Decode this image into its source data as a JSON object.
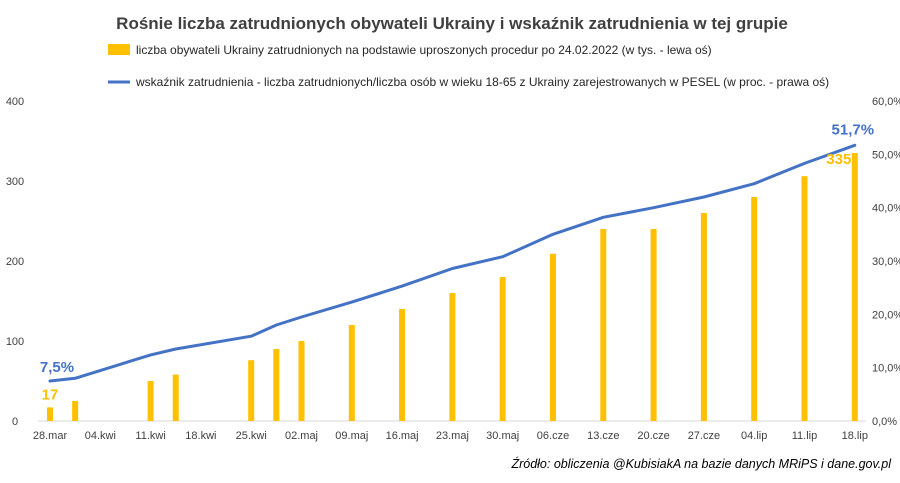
{
  "chart_data": {
    "type": "bar",
    "title": "Rośnie liczba zatrudnionych obywateli Ukrainy i wskaźnik zatrudnienia w tej grupie",
    "categories": [
      "28.mar",
      "04.kwi",
      "11.kwi",
      "18.kwi",
      "25.kwi",
      "02.maj",
      "09.maj",
      "16.maj",
      "23.maj",
      "30.maj",
      "06.cze",
      "13.cze",
      "20.cze",
      "27.cze",
      "04.lip",
      "11.lip",
      "18.lip"
    ],
    "x": [
      "28.mar",
      "31.mar",
      "04.kwi",
      "07.kwi",
      "11.kwi",
      "14.kwi",
      "18.kwi",
      "21.kwi",
      "25.kwi",
      "28.kwi",
      "02.maj",
      "05.maj",
      "09.maj",
      "12.maj",
      "16.maj",
      "19.maj",
      "23.maj",
      "26.maj",
      "30.maj",
      "02.cze",
      "06.cze",
      "09.cze",
      "13.cze",
      "16.cze",
      "20.cze",
      "23.cze",
      "27.cze",
      "30.cze",
      "04.lip",
      "07.lip",
      "11.lip",
      "14.lip",
      "18.lip"
    ],
    "series": [
      {
        "name": "liczba obywateli Ukrainy zatrudnionych na podstawie uproszonych procedur po 24.02.2022 (w tys. - lewa oś)",
        "type": "bar",
        "axis": "left",
        "color": "#FFC000",
        "values": [
          17,
          25,
          null,
          null,
          50,
          58,
          null,
          null,
          76,
          90,
          100,
          null,
          120,
          null,
          140,
          null,
          160,
          null,
          180,
          null,
          209,
          null,
          240,
          null,
          240,
          null,
          260,
          null,
          280,
          null,
          306,
          null,
          335
        ]
      },
      {
        "name": "wskaźnik zatrudnienia - liczba zatrudnionych/liczba osób w wieku 18-65 z Ukrainy zarejestrowanych w PESEL (w proc. - prawa oś)",
        "type": "line",
        "axis": "right",
        "color": "#4472C4",
        "values": [
          7.5,
          8.0,
          null,
          null,
          12.4,
          13.5,
          null,
          null,
          15.9,
          18.0,
          19.5,
          null,
          22.3,
          null,
          25.3,
          null,
          28.6,
          null,
          30.8,
          null,
          35.0,
          null,
          38.2,
          null,
          40.0,
          null,
          42.0,
          null,
          44.5,
          null,
          48.3,
          null,
          51.7
        ]
      }
    ],
    "left_axis": {
      "ylim": [
        0,
        400
      ],
      "ticks": [
        "0",
        "100",
        "200",
        "300",
        "400"
      ]
    },
    "right_axis": {
      "ylim": [
        0,
        60
      ],
      "ticks": [
        "0,0%",
        "10,0%",
        "20,0%",
        "30,0%",
        "40,0%",
        "50,0%",
        "60,0%"
      ]
    },
    "data_labels": {
      "line_first": "7,5%",
      "line_last": "51,7%",
      "bar_first": "17",
      "bar_last": "335"
    },
    "legend_position": "top",
    "grid": false
  },
  "source_note": "Źródło: obliczenia @KubisiakA na bazie danych MRiPS i dane.gov.pl"
}
